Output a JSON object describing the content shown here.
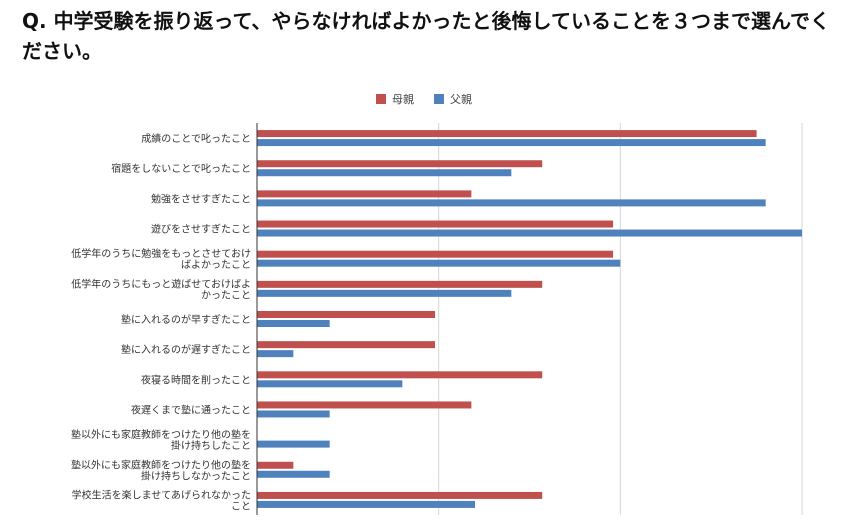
{
  "question": "Q.  中学受験を振り返って、やらなければよかったと後悔していることを３つまで選んでください。",
  "chart_data": {
    "type": "bar",
    "orientation": "horizontal",
    "title": "",
    "xlabel": "",
    "ylabel": "",
    "xlim": [
      0,
      30
    ],
    "grid": true,
    "legend_position": "top",
    "categories": [
      [
        "成績のことで叱ったこと"
      ],
      [
        "宿題をしないことで叱ったこと"
      ],
      [
        "勉強をさせすぎたこと"
      ],
      [
        "遊びをさせすぎたこと"
      ],
      [
        "低学年のうちに勉強をもっとさせておけ",
        "ばよかったこと"
      ],
      [
        "低学年のうちにもっと遊ばせておけばよ",
        "かったこと"
      ],
      [
        "塾に入れるのが早すぎたこと"
      ],
      [
        "塾に入れるのが遅すぎたこと"
      ],
      [
        "夜寝る時間を削ったこと"
      ],
      [
        "夜遅くまで塾に通ったこと"
      ],
      [
        "塾以外にも家庭教師をつけたり他の塾を",
        "掛け持ちしたこと"
      ],
      [
        "塾以外にも家庭教師をつけたり他の塾を",
        "掛け持ちしなかったこと"
      ],
      [
        "学校生活を楽しませてあげられなかった",
        "こと"
      ]
    ],
    "series": [
      {
        "name": "母親",
        "color": "#c0504d",
        "values": [
          27.5,
          15.7,
          11.8,
          19.6,
          19.6,
          15.7,
          9.8,
          9.8,
          15.7,
          11.8,
          0,
          2.0,
          15.7
        ]
      },
      {
        "name": "父親",
        "color": "#4f81bd",
        "values": [
          28.0,
          14.0,
          28.0,
          30.0,
          20.0,
          14.0,
          4.0,
          2.0,
          8.0,
          4.0,
          4.0,
          4.0,
          12.0
        ]
      }
    ]
  }
}
